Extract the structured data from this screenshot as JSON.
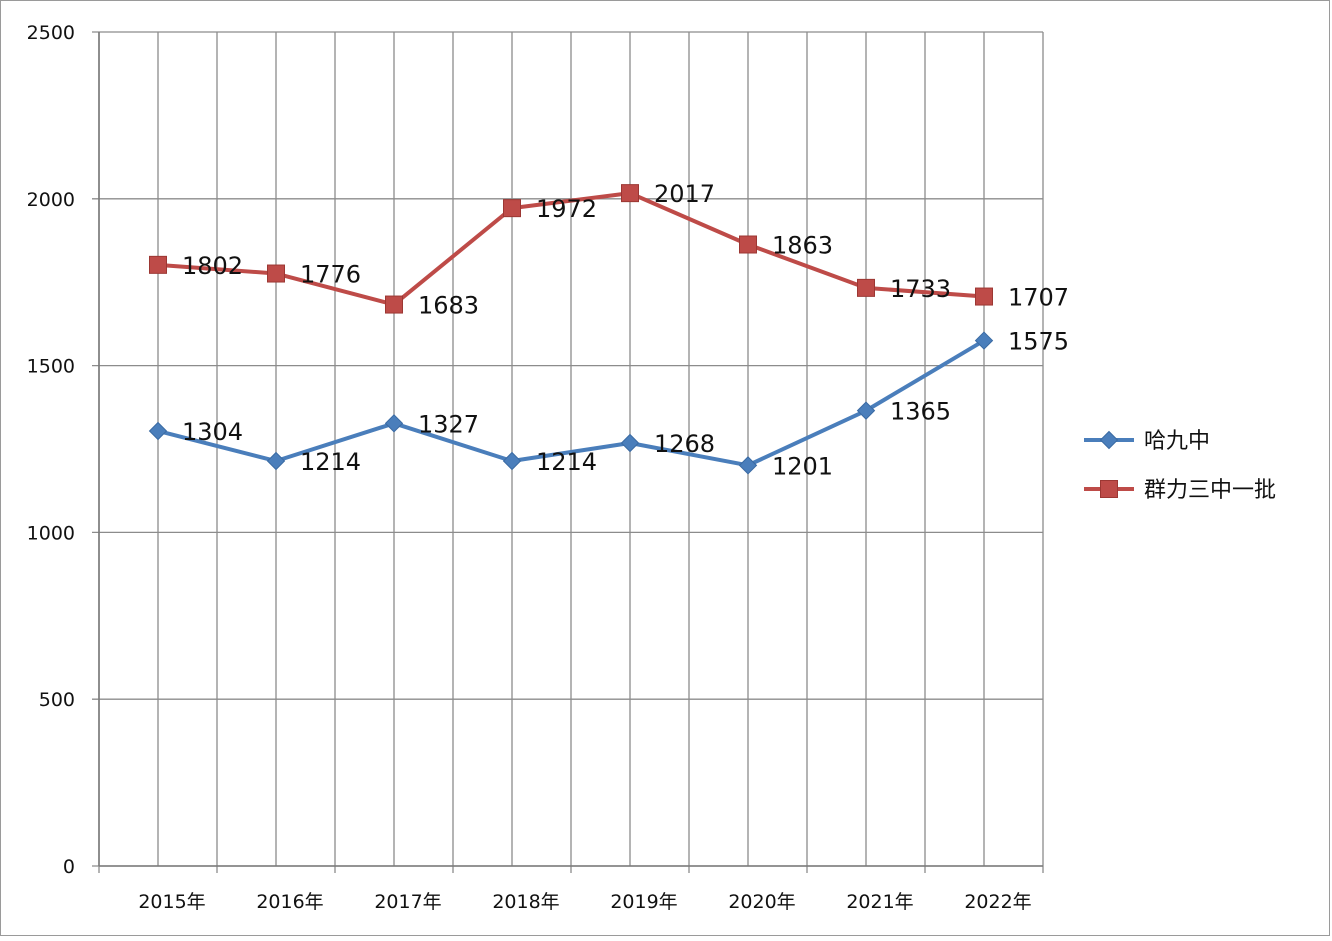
{
  "chart_data": {
    "type": "line",
    "title": "",
    "xlabel": "",
    "ylabel": "",
    "categories": [
      "2015年",
      "2016年",
      "2017年",
      "2018年",
      "2019年",
      "2020年",
      "2021年",
      "2022年"
    ],
    "ylim": [
      0,
      2500
    ],
    "yticks": [
      0,
      500,
      1000,
      1500,
      2000,
      2500
    ],
    "ytick_labels": [
      "0",
      "500",
      "1000",
      "1500",
      "2000",
      "2500"
    ],
    "grid": true,
    "legend_position": "right",
    "series": [
      {
        "name": "哈九中",
        "color": "#4a7ebb",
        "marker": "diamond",
        "values": [
          1304,
          1214,
          1327,
          1214,
          1268,
          1201,
          1365,
          1575
        ],
        "labels": [
          "1304",
          "1214",
          "1327",
          "1214",
          "1268",
          "1201",
          "1365",
          "1575"
        ]
      },
      {
        "name": "群力三中一批",
        "color": "#be4b48",
        "marker": "square",
        "values": [
          1802,
          1776,
          1683,
          1972,
          2017,
          1863,
          1733,
          1707
        ],
        "labels": [
          "1802",
          "1776",
          "1683",
          "1972",
          "2017",
          "1863",
          "1733",
          "1707"
        ]
      }
    ]
  }
}
